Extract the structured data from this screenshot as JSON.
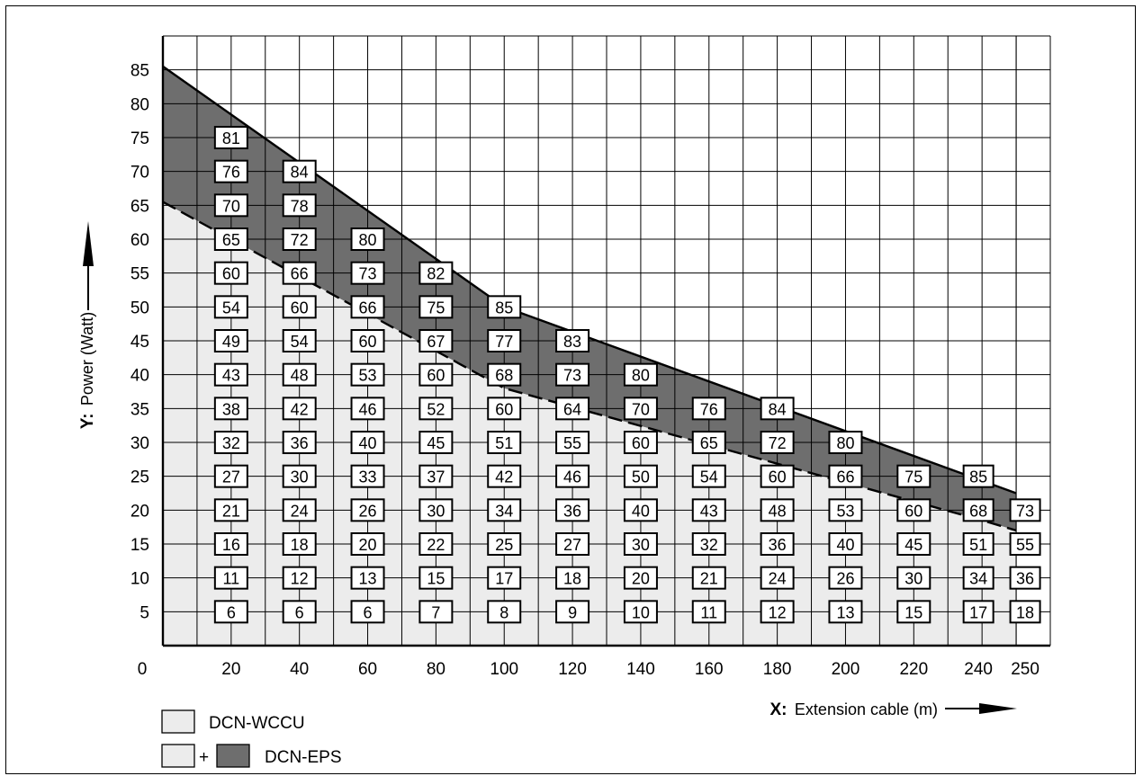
{
  "chart_data": {
    "type": "area",
    "x_axis": {
      "prefix": "X:",
      "label": "Extension cable (m)",
      "ticks": [
        0,
        20,
        40,
        60,
        80,
        100,
        120,
        140,
        160,
        180,
        200,
        220,
        240,
        250
      ],
      "range": [
        0,
        260
      ]
    },
    "y_axis": {
      "prefix": "Y:",
      "label": "Power (Watt)",
      "ticks": [
        5,
        10,
        15,
        20,
        25,
        30,
        35,
        40,
        45,
        50,
        55,
        60,
        65,
        70,
        75,
        80,
        85
      ],
      "range": [
        0,
        90
      ]
    },
    "grid": true,
    "series": [
      {
        "name": "DCN-WCCU",
        "color": "#ececec",
        "boundary": [
          [
            0,
            65.5
          ],
          [
            100,
            38
          ],
          [
            240,
            18.5
          ],
          [
            250,
            17
          ]
        ]
      },
      {
        "name": "DCN-EPS",
        "color": "#6e6e6e",
        "boundary": [
          [
            0,
            85.5
          ],
          [
            100,
            50
          ],
          [
            250,
            22.5
          ]
        ]
      }
    ],
    "cells": [
      {
        "x": 20,
        "values": [
          6,
          11,
          16,
          21,
          27,
          32,
          38,
          43,
          49,
          54,
          60,
          65,
          70,
          76,
          81
        ]
      },
      {
        "x": 40,
        "values": [
          6,
          12,
          18,
          24,
          30,
          36,
          42,
          48,
          54,
          60,
          66,
          72,
          78,
          84
        ]
      },
      {
        "x": 60,
        "values": [
          6,
          13,
          20,
          26,
          33,
          40,
          46,
          53,
          60,
          66,
          73,
          80
        ]
      },
      {
        "x": 80,
        "values": [
          7,
          15,
          22,
          30,
          37,
          45,
          52,
          60,
          67,
          75,
          82
        ]
      },
      {
        "x": 100,
        "values": [
          8,
          17,
          25,
          34,
          42,
          51,
          60,
          68,
          77,
          85
        ]
      },
      {
        "x": 120,
        "values": [
          9,
          18,
          27,
          36,
          46,
          55,
          64,
          73,
          83
        ]
      },
      {
        "x": 140,
        "values": [
          10,
          20,
          30,
          40,
          50,
          60,
          70,
          80
        ]
      },
      {
        "x": 160,
        "values": [
          11,
          21,
          32,
          43,
          54,
          65,
          76
        ]
      },
      {
        "x": 180,
        "values": [
          12,
          24,
          36,
          48,
          60,
          72,
          84
        ]
      },
      {
        "x": 200,
        "values": [
          13,
          26,
          40,
          53,
          66,
          80
        ]
      },
      {
        "x": 220,
        "values": [
          15,
          30,
          45,
          60,
          75
        ]
      },
      {
        "x": 240,
        "values": [
          17,
          34,
          51,
          68,
          85
        ]
      },
      {
        "x": 250,
        "values": [
          18,
          36,
          55,
          73
        ]
      }
    ],
    "legend": {
      "position": "bottom-left",
      "items": [
        {
          "label": "DCN-WCCU"
        },
        {
          "label": "DCN-EPS",
          "prefix_symbol": "+"
        }
      ]
    }
  }
}
